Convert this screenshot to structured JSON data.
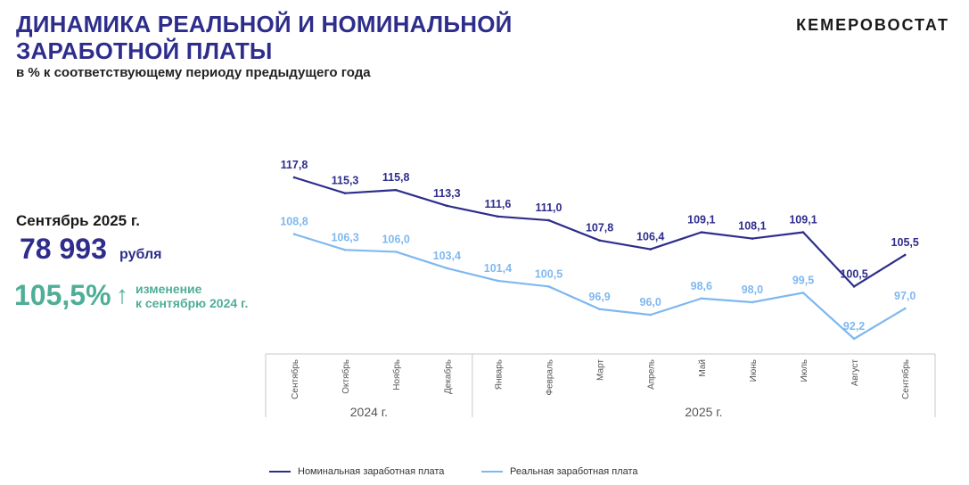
{
  "header": {
    "title_line1": "ДИНАМИКА РЕАЛЬНОЙ И НОМИНАЛЬНОЙ",
    "title_line2": "ЗАРАБОТНОЙ ПЛАТЫ",
    "subtitle": "в % к соответствующему периоду предыдущего года",
    "organization": "КЕМЕРОВОСТАТ"
  },
  "summary": {
    "period": "Сентябрь 2025 г.",
    "amount": "78 993",
    "currency": "рубля",
    "change": "105,5%",
    "change_arrow": "↑",
    "change_note_line1": "изменение",
    "change_note_line2": "к сентябрю 2024 г."
  },
  "colors": {
    "nominal": "#2e2d8c",
    "real": "#7fb8f0",
    "accent_green": "#4fae97"
  },
  "chart_data": {
    "type": "line",
    "categories": [
      "Сентябрь",
      "Октябрь",
      "Ноябрь",
      "Декабрь",
      "Январь",
      "Февраль",
      "Март",
      "Апрель",
      "Май",
      "Июнь",
      "Июль",
      "Август",
      "Сентябрь"
    ],
    "year_groups": [
      {
        "label": "2024 г.",
        "start": 0,
        "end": 3
      },
      {
        "label": "2025 г.",
        "start": 4,
        "end": 12
      }
    ],
    "series": [
      {
        "name": "Номинальная заработная плата",
        "values": [
          117.8,
          115.3,
          115.8,
          113.3,
          111.6,
          111.0,
          107.8,
          106.4,
          109.1,
          108.1,
          109.1,
          100.5,
          105.5
        ],
        "labels": [
          "117,8",
          "115,3",
          "115,8",
          "113,3",
          "111,6",
          "111,0",
          "107,8",
          "106,4",
          "109,1",
          "108,1",
          "109,1",
          "100,5",
          "105,5"
        ]
      },
      {
        "name": "Реальная заработная плата",
        "values": [
          108.8,
          106.3,
          106.0,
          103.4,
          101.4,
          100.5,
          96.9,
          96.0,
          98.6,
          98.0,
          99.5,
          92.2,
          97.0
        ],
        "labels": [
          "108,8",
          "106,3",
          "106,0",
          "103,4",
          "101,4",
          "100,5",
          "96,9",
          "96,0",
          "98,6",
          "98,0",
          "99,5",
          "92,2",
          "97,0"
        ]
      }
    ],
    "grid": false,
    "legend_position": "bottom"
  }
}
